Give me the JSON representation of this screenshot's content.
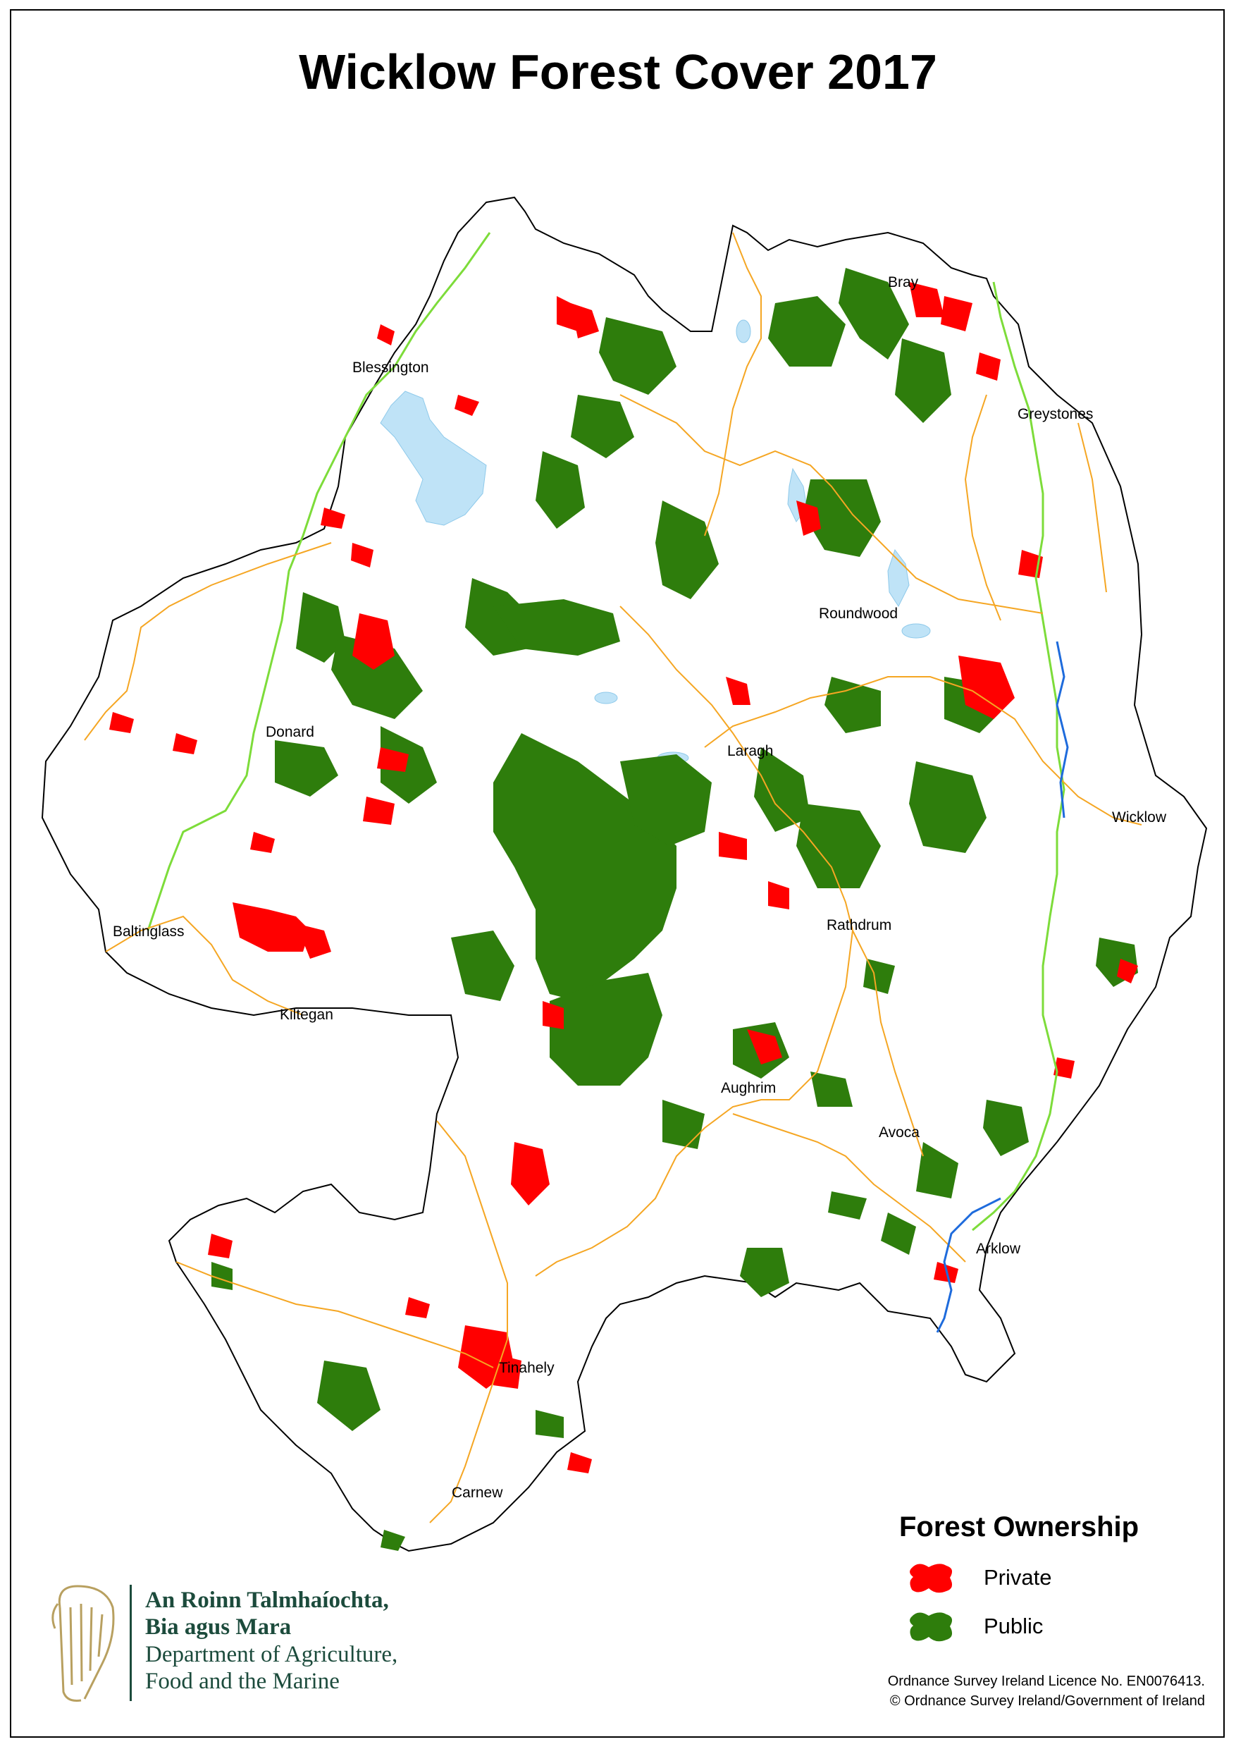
{
  "title": "Wicklow Forest Cover 2017",
  "towns": [
    {
      "name": "Bray"
    },
    {
      "name": "Blessington"
    },
    {
      "name": "Greystones"
    },
    {
      "name": "Roundwood"
    },
    {
      "name": "Donard"
    },
    {
      "name": "Laragh"
    },
    {
      "name": "Wicklow"
    },
    {
      "name": "Baltinglass"
    },
    {
      "name": "Rathdrum"
    },
    {
      "name": "Kiltegan"
    },
    {
      "name": "Aughrim"
    },
    {
      "name": "Avoca"
    },
    {
      "name": "Arklow"
    },
    {
      "name": "Tinahely"
    },
    {
      "name": "Carnew"
    }
  ],
  "legend": {
    "title": "Forest Ownership",
    "items": [
      {
        "label": "Private",
        "color": "#ff0000"
      },
      {
        "label": "Public",
        "color": "#2e7d0c"
      }
    ]
  },
  "credits": {
    "line1": "Ordnance Survey Ireland Licence No. EN0076413.",
    "line2": "© Ordnance Survey Ireland/Government of Ireland"
  },
  "department": {
    "irish_line1": "An Roinn Talmhaíochta,",
    "irish_line2": "Bia agus Mara",
    "english_line1": "Department of Agriculture,",
    "english_line2": "Food and the Marine"
  },
  "colors": {
    "private": "#ff0000",
    "public": "#2e7d0c",
    "roads_regional": "#f5a623",
    "roads_national": "#7ddc3a",
    "rivers": "#1e6bdc",
    "lakes": "#bfe3f7"
  }
}
